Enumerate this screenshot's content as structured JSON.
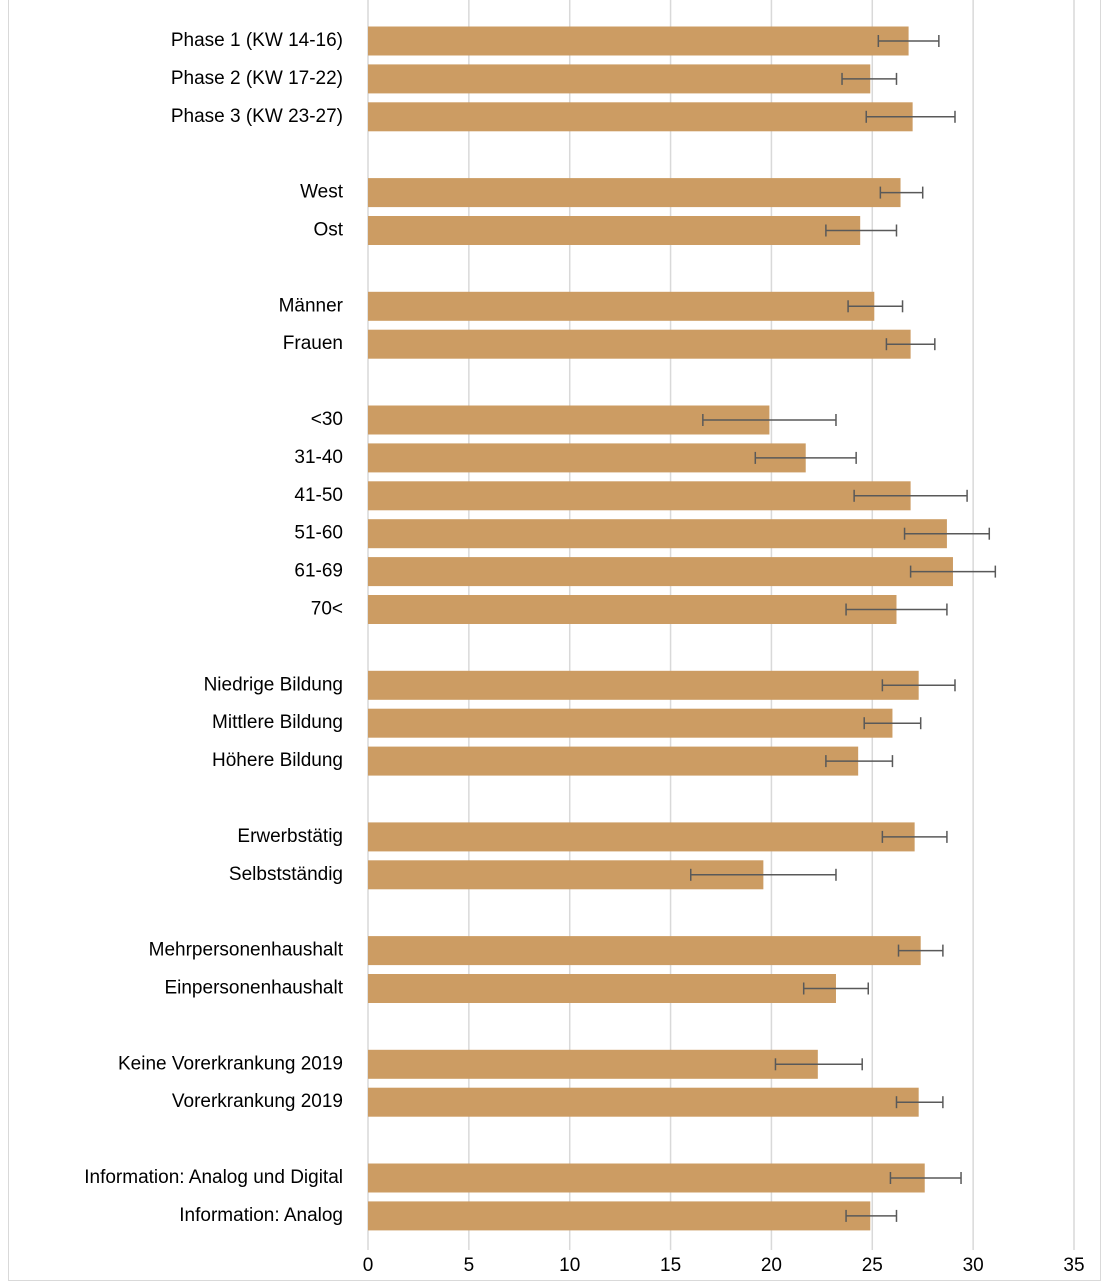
{
  "chart_data": {
    "type": "bar",
    "orientation": "horizontal",
    "title": "",
    "xlabel": "",
    "ylabel": "",
    "xlim": [
      0,
      35
    ],
    "xticks": [
      0,
      5,
      10,
      15,
      20,
      25,
      30,
      35
    ],
    "grid": "vertical gridlines",
    "legend": "none",
    "bar_color": "#cc9c63",
    "error_bar_color": "#595959",
    "groups": [
      {
        "categories": [
          "Phase 1 (KW 14-16)",
          "Phase 2 (KW 17-22)",
          "Phase 3 (KW 23-27)"
        ],
        "values": [
          26.8,
          24.9,
          27.0
        ],
        "error_low": [
          25.3,
          23.5,
          24.7
        ],
        "error_high": [
          28.3,
          26.2,
          29.1
        ]
      },
      {
        "categories": [
          "West",
          "Ost"
        ],
        "values": [
          26.4,
          24.4
        ],
        "error_low": [
          25.4,
          22.7
        ],
        "error_high": [
          27.5,
          26.2
        ]
      },
      {
        "categories": [
          "Männer",
          "Frauen"
        ],
        "values": [
          25.1,
          26.9
        ],
        "error_low": [
          23.8,
          25.7
        ],
        "error_high": [
          26.5,
          28.1
        ]
      },
      {
        "categories": [
          "<30",
          "31-40",
          "41-50",
          "51-60",
          "61-69",
          "70<"
        ],
        "values": [
          19.9,
          21.7,
          26.9,
          28.7,
          29.0,
          26.2
        ],
        "error_low": [
          16.6,
          19.2,
          24.1,
          26.6,
          26.9,
          23.7
        ],
        "error_high": [
          23.2,
          24.2,
          29.7,
          30.8,
          31.1,
          28.7
        ]
      },
      {
        "categories": [
          "Niedrige Bildung",
          "Mittlere Bildung",
          "Höhere Bildung"
        ],
        "values": [
          27.3,
          26.0,
          24.3
        ],
        "error_low": [
          25.5,
          24.6,
          22.7
        ],
        "error_high": [
          29.1,
          27.4,
          26.0
        ]
      },
      {
        "categories": [
          "Erwerbstätig",
          "Selbstständig"
        ],
        "values": [
          27.1,
          19.6
        ],
        "error_low": [
          25.5,
          16.0
        ],
        "error_high": [
          28.7,
          23.2
        ]
      },
      {
        "categories": [
          "Mehrpersonenhaushalt",
          "Einpersonenhaushalt"
        ],
        "values": [
          27.4,
          23.2
        ],
        "error_low": [
          26.3,
          21.6
        ],
        "error_high": [
          28.5,
          24.8
        ]
      },
      {
        "categories": [
          "Keine Vorerkrankung 2019",
          "Vorerkrankung 2019 "
        ],
        "values": [
          22.3,
          27.3
        ],
        "error_low": [
          20.2,
          26.2
        ],
        "error_high": [
          24.5,
          28.5
        ]
      },
      {
        "categories": [
          "Information: Analog und Digital",
          "Information: Analog"
        ],
        "values": [
          27.6,
          24.9
        ],
        "error_low": [
          25.9,
          23.7
        ],
        "error_high": [
          29.4,
          26.2
        ]
      }
    ]
  }
}
